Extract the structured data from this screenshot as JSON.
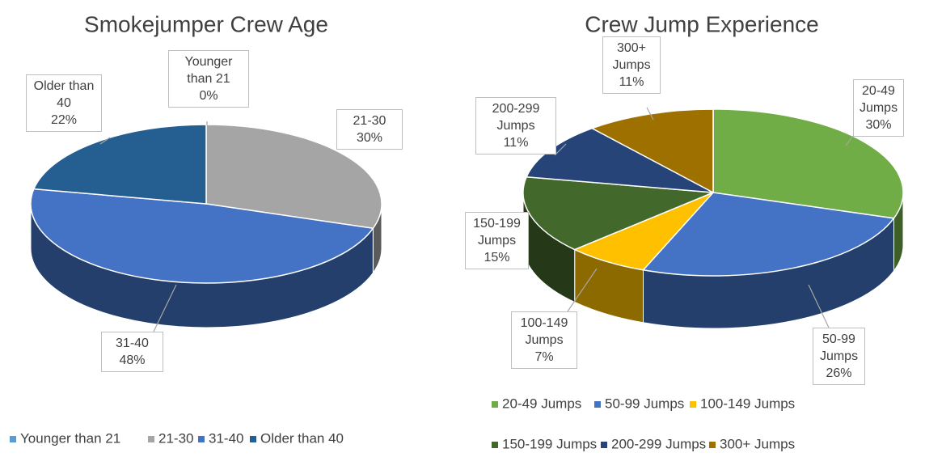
{
  "chart_data": [
    {
      "type": "pie",
      "title": "Smokejumper Crew Age",
      "categories": [
        "Younger than 21",
        "21-30",
        "31-40",
        "Older than 40"
      ],
      "values": [
        0,
        30,
        48,
        22
      ],
      "value_labels": [
        "0%",
        "30%",
        "48%",
        "22%"
      ],
      "colors": [
        "#5b9bd5",
        "#a5a5a5",
        "#4472c4",
        "#255e91"
      ]
    },
    {
      "type": "pie",
      "title": "Crew Jump Experience",
      "categories": [
        "20-49 Jumps",
        "50-99 Jumps",
        "100-149 Jumps",
        "150-199 Jumps",
        "200-299 Jumps",
        "300+ Jumps"
      ],
      "values": [
        30,
        26,
        7,
        15,
        11,
        11
      ],
      "value_labels": [
        "30%",
        "26%",
        "7%",
        "15%",
        "11%",
        "11%"
      ],
      "colors": [
        "#70ad47",
        "#4472c4",
        "#ffc000",
        "#43682b",
        "#264478",
        "#9e7000"
      ]
    }
  ]
}
